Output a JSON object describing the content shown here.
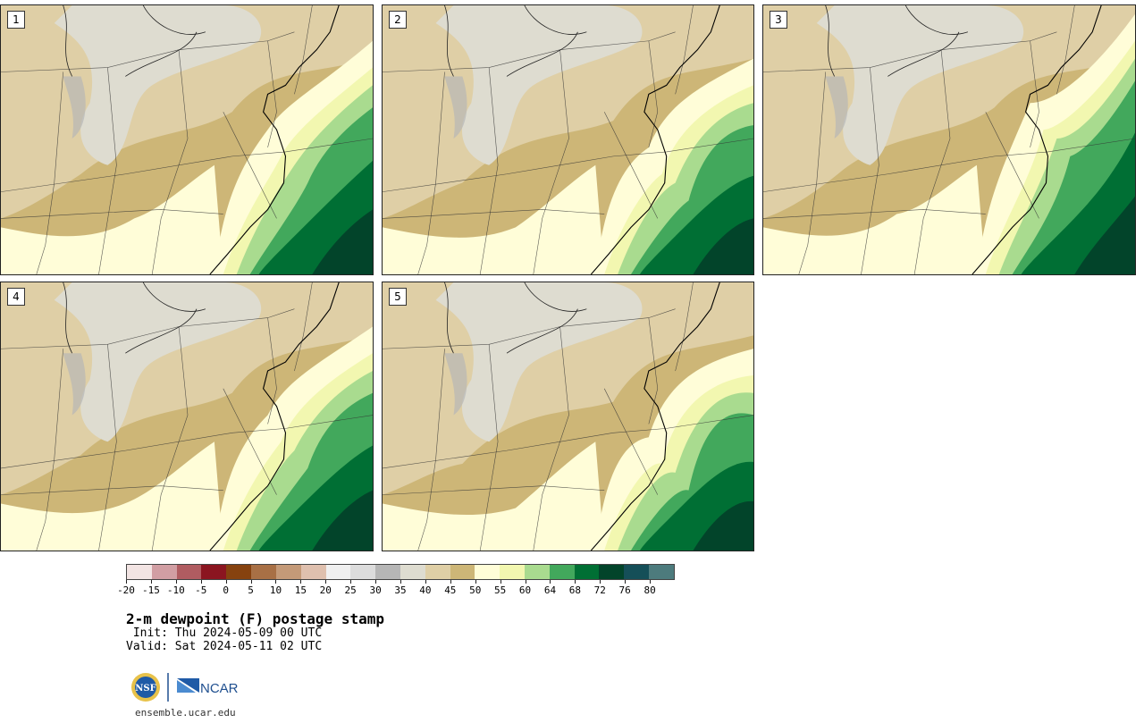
{
  "panels": [
    {
      "label": "1"
    },
    {
      "label": "2"
    },
    {
      "label": "3"
    },
    {
      "label": "4"
    },
    {
      "label": "5"
    }
  ],
  "colorbar": {
    "colors": [
      "#f2e4e3",
      "#d19ea3",
      "#b05c61",
      "#8b1520",
      "#86420f",
      "#a87045",
      "#c49a78",
      "#dfc0ae",
      "#f0f0f0",
      "#dcdcdc",
      "#b6b6b6",
      "#dedcd0",
      "#dfcfa6",
      "#cdb677",
      "#fffdd8",
      "#f2f7b0",
      "#a9db8f",
      "#42a85c",
      "#006f34",
      "#02442a",
      "#154f58",
      "#4d7b7d"
    ],
    "ticks": [
      "-20",
      "-15",
      "-10",
      "-5",
      "0",
      "5",
      "10",
      "15",
      "20",
      "25",
      "30",
      "35",
      "40",
      "45",
      "50",
      "55",
      "60",
      "64",
      "68",
      "72",
      "76",
      "80"
    ]
  },
  "title": "2-m dewpoint (F) postage stamp",
  "init": " Init: Thu 2024-05-09 00 UTC",
  "valid": "Valid: Sat 2024-05-11 02 UTC",
  "logos": {
    "nsf": "NSF",
    "ncar": "NCAR"
  },
  "site": "ensemble.ucar.edu"
}
